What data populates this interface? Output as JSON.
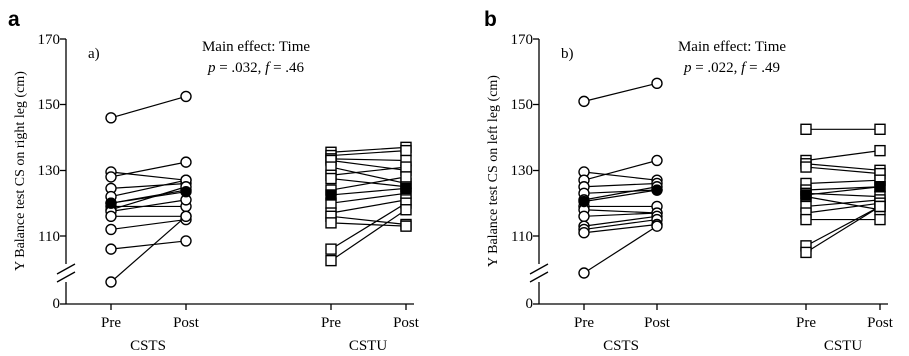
{
  "panels": [
    {
      "letter": "a",
      "sublabel": "a)",
      "ylabel": "Y Balance test CS on right leg (cm)",
      "effect_title": "Main effect: Time",
      "effect_stat_p": "p",
      "effect_stat_rest1": " = .032, ",
      "effect_stat_f": "f",
      "effect_stat_rest2": " = .46",
      "y_ticks": [
        "170",
        "150",
        "130",
        "110",
        "0"
      ],
      "x_ticks": [
        "Pre",
        "Post",
        "Pre",
        "Post"
      ],
      "groups": [
        "CSTS",
        "CSTU"
      ]
    },
    {
      "letter": "b",
      "sublabel": "b)",
      "ylabel": "Y Balance test CS on left leg (cm)",
      "effect_title": "Main effect: Time",
      "effect_stat_p": "p",
      "effect_stat_rest1": " = .022, ",
      "effect_stat_f": "f",
      "effect_stat_rest2": " = .49",
      "y_ticks": [
        "170",
        "150",
        "130",
        "110",
        "0"
      ],
      "x_ticks": [
        "Pre",
        "Post",
        "Pre",
        "Post"
      ],
      "groups": [
        "CSTS",
        "CSTU"
      ]
    }
  ],
  "chart_data": [
    {
      "type": "line",
      "panel": "a",
      "ylabel": "Y Balance test CS on right leg (cm)",
      "ylim": [
        100,
        170
      ],
      "axis_break": true,
      "y_ticks": [
        0,
        110,
        130,
        150,
        170
      ],
      "categories": [
        "Pre",
        "Post"
      ],
      "groups": [
        {
          "name": "CSTS",
          "marker": "circle",
          "pairs": [
            [
              146,
              152.5
            ],
            [
              129.5,
              127
            ],
            [
              128,
              132.5
            ],
            [
              124.5,
              126
            ],
            [
              122,
              127
            ],
            [
              120,
              124
            ],
            [
              119,
              119
            ],
            [
              118,
              125
            ],
            [
              117.5,
              121
            ],
            [
              116,
              116
            ],
            [
              112,
              115
            ],
            [
              106,
              108.5
            ],
            [
              96,
              116
            ]
          ],
          "mean": [
            120,
            123.5
          ]
        },
        {
          "name": "CSTU",
          "marker": "square",
          "pairs": [
            [
              135.5,
              137
            ],
            [
              134.5,
              136
            ],
            [
              133.5,
              133
            ],
            [
              133,
              130
            ],
            [
              131,
              126
            ],
            [
              128.5,
              131
            ],
            [
              127.5,
              125
            ],
            [
              124,
              128
            ],
            [
              120,
              123
            ],
            [
              117,
              121
            ],
            [
              116,
              113.5
            ],
            [
              114,
              113
            ],
            [
              106,
              120
            ],
            [
              102.5,
              118
            ]
          ],
          "mean": [
            122.5,
            124.5
          ]
        }
      ]
    },
    {
      "type": "line",
      "panel": "b",
      "ylabel": "Y Balance test CS on left leg (cm)",
      "ylim": [
        100,
        170
      ],
      "axis_break": true,
      "y_ticks": [
        0,
        110,
        130,
        150,
        170
      ],
      "categories": [
        "Pre",
        "Post"
      ],
      "groups": [
        {
          "name": "CSTS",
          "marker": "circle",
          "pairs": [
            [
              151,
              156.5
            ],
            [
              129.5,
              127
            ],
            [
              127,
              133
            ],
            [
              125,
              126
            ],
            [
              123,
              124
            ],
            [
              121,
              125
            ],
            [
              119,
              119
            ],
            [
              118,
              117
            ],
            [
              116,
              117
            ],
            [
              113,
              116
            ],
            [
              112,
              115
            ],
            [
              111,
              113.5
            ],
            [
              99,
              113
            ]
          ],
          "mean": [
            120.5,
            124
          ]
        },
        {
          "name": "CSTU",
          "marker": "square",
          "pairs": [
            [
              142.5,
              142.5
            ],
            [
              133,
              136
            ],
            [
              132,
              130
            ],
            [
              131,
              129
            ],
            [
              126,
              127
            ],
            [
              124,
              125
            ],
            [
              123,
              122
            ],
            [
              122,
              118
            ],
            [
              119,
              121
            ],
            [
              117,
              120
            ],
            [
              115,
              115
            ],
            [
              107,
              119
            ],
            [
              105,
              119
            ]
          ],
          "mean": [
            122.5,
            125
          ]
        }
      ]
    }
  ]
}
